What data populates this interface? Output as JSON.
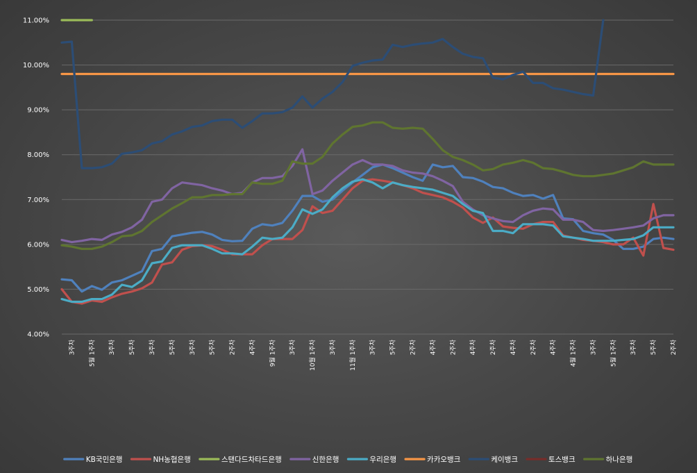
{
  "chart_data": {
    "type": "line",
    "title": "",
    "xlabel": "",
    "ylabel": "",
    "ylim": [
      4.0,
      11.0
    ],
    "yticks": [
      "4.00%",
      "5.00%",
      "6.00%",
      "7.00%",
      "8.00%",
      "9.00%",
      "10.00%",
      "11.00%"
    ],
    "grid": true,
    "legend_position": "bottom",
    "x_tick_labels": [
      "3주차",
      "5월 1주차",
      "3주차",
      "5주차",
      "3주차",
      "5주차",
      "3주차",
      "5주차",
      "2주차",
      "4주차",
      "9월 1주차",
      "3주차",
      "10월 1주차",
      "3주차",
      "11월 1주차",
      "3주차",
      "5주차",
      "2주차",
      "4주차",
      "2주차",
      "4주차",
      "2주차",
      "4주차",
      "2주차",
      "4주차",
      "4월 1주차",
      "3주차",
      "5월 1주차",
      "3주차",
      "5주차",
      "2주차"
    ],
    "n_points": 62,
    "series": [
      {
        "name": "KB국민은행",
        "color": "#4f81bd",
        "values": [
          5.22,
          5.2,
          4.95,
          5.07,
          4.99,
          5.15,
          5.2,
          5.3,
          5.4,
          5.85,
          5.9,
          6.18,
          6.22,
          6.26,
          6.28,
          6.22,
          6.1,
          6.07,
          6.08,
          6.35,
          6.45,
          6.42,
          6.48,
          6.75,
          7.08,
          7.08,
          6.95,
          7.0,
          7.2,
          7.38,
          7.55,
          7.72,
          7.78,
          7.7,
          7.6,
          7.5,
          7.42,
          7.78,
          7.72,
          7.75,
          7.5,
          7.48,
          7.4,
          7.28,
          7.25,
          7.15,
          7.08,
          7.1,
          7.02,
          7.1,
          6.58,
          6.56,
          6.3,
          6.25,
          6.22,
          6.1,
          5.9,
          5.9,
          5.95,
          6.12,
          6.15,
          6.12
        ]
      },
      {
        "name": "NH농협은행",
        "color": "#c0504d",
        "values": [
          5.0,
          4.72,
          4.68,
          4.75,
          4.72,
          4.82,
          4.9,
          4.95,
          5.02,
          5.15,
          5.55,
          5.6,
          5.88,
          5.96,
          5.98,
          5.96,
          5.88,
          5.78,
          5.78,
          5.78,
          5.98,
          6.12,
          6.12,
          6.12,
          6.32,
          6.85,
          6.7,
          6.75,
          7.0,
          7.25,
          7.42,
          7.45,
          7.42,
          7.38,
          7.32,
          7.25,
          7.15,
          7.1,
          7.05,
          6.95,
          6.82,
          6.6,
          6.48,
          6.6,
          6.4,
          6.37,
          6.35,
          6.45,
          6.5,
          6.5,
          6.2,
          6.15,
          6.1,
          6.08,
          6.05,
          6.0,
          6.0,
          6.15,
          5.75,
          6.9,
          5.92,
          5.88
        ]
      },
      {
        "name": "스탠다드차타드은행",
        "color": "#9bbb59",
        "values": [
          11.0,
          11.0,
          11.0,
          11.0,
          null,
          null,
          null,
          null,
          null,
          null,
          null,
          null,
          null,
          null,
          null,
          null,
          null,
          null,
          null,
          null,
          null,
          null,
          null,
          null,
          null,
          null,
          null,
          null,
          null,
          null,
          null,
          null,
          null,
          null,
          null,
          null,
          null,
          null,
          null,
          null,
          null,
          null,
          null,
          null,
          null,
          null,
          null,
          null,
          null,
          null,
          null,
          null,
          null,
          null,
          null,
          null,
          null,
          null,
          null,
          null,
          null,
          null
        ]
      },
      {
        "name": "신한은행",
        "color": "#8064a2",
        "values": [
          6.1,
          6.05,
          6.08,
          6.12,
          6.1,
          6.22,
          6.28,
          6.38,
          6.55,
          6.95,
          7.0,
          7.25,
          7.38,
          7.35,
          7.32,
          7.25,
          7.2,
          7.12,
          7.15,
          7.38,
          7.48,
          7.48,
          7.52,
          7.75,
          8.12,
          7.12,
          7.2,
          7.42,
          7.6,
          7.78,
          7.88,
          7.78,
          7.78,
          7.75,
          7.65,
          7.6,
          7.58,
          7.52,
          7.42,
          7.3,
          6.95,
          6.78,
          6.65,
          6.58,
          6.52,
          6.5,
          6.65,
          6.75,
          6.8,
          6.78,
          6.55,
          6.55,
          6.5,
          6.32,
          6.3,
          6.32,
          6.35,
          6.38,
          6.42,
          6.58,
          6.65,
          6.65
        ]
      },
      {
        "name": "우리은행",
        "color": "#4bacc6",
        "values": [
          4.78,
          4.72,
          4.72,
          4.78,
          4.78,
          4.88,
          5.1,
          5.05,
          5.2,
          5.58,
          5.62,
          5.92,
          5.98,
          5.98,
          5.98,
          5.9,
          5.8,
          5.8,
          5.78,
          5.95,
          6.15,
          6.12,
          6.15,
          6.38,
          6.78,
          6.68,
          6.78,
          7.05,
          7.25,
          7.4,
          7.45,
          7.38,
          7.25,
          7.38,
          7.32,
          7.28,
          7.25,
          7.22,
          7.15,
          7.08,
          6.9,
          6.75,
          6.7,
          6.3,
          6.3,
          6.25,
          6.45,
          6.45,
          6.45,
          6.42,
          6.18,
          6.15,
          6.12,
          6.08,
          6.08,
          6.08,
          6.1,
          6.12,
          6.2,
          6.38,
          6.38,
          6.38
        ]
      },
      {
        "name": "카카오뱅크",
        "color": "#f79646",
        "values": [
          9.8,
          9.8,
          9.8,
          9.8,
          9.8,
          9.8,
          9.8,
          9.8,
          9.8,
          9.8,
          9.8,
          9.8,
          9.8,
          9.8,
          9.8,
          9.8,
          9.8,
          9.8,
          9.8,
          9.8,
          9.8,
          9.8,
          9.8,
          9.8,
          9.8,
          9.8,
          9.8,
          9.8,
          9.8,
          9.8,
          9.8,
          9.8,
          9.8,
          9.8,
          9.8,
          9.8,
          9.8,
          9.8,
          9.8,
          9.8,
          9.8,
          9.8,
          9.8,
          9.8,
          9.8,
          9.8,
          9.8,
          9.8,
          9.8,
          9.8,
          9.8,
          9.8,
          9.8,
          9.8,
          9.8,
          9.8,
          9.8,
          9.8,
          9.8,
          9.8,
          9.8,
          9.8
        ]
      },
      {
        "name": "케이뱅크",
        "color": "#2c4d75",
        "values": [
          10.5,
          10.52,
          7.7,
          7.7,
          7.72,
          7.8,
          8.02,
          8.05,
          8.1,
          8.25,
          8.3,
          8.45,
          8.52,
          8.62,
          8.65,
          8.75,
          8.78,
          8.78,
          8.6,
          8.75,
          8.92,
          8.92,
          8.95,
          9.05,
          9.3,
          9.05,
          9.25,
          9.4,
          9.62,
          9.98,
          10.05,
          10.1,
          10.12,
          10.45,
          10.4,
          10.45,
          10.48,
          10.5,
          10.58,
          10.4,
          10.25,
          10.18,
          10.15,
          9.72,
          9.68,
          9.78,
          9.85,
          9.6,
          9.6,
          9.48,
          9.45,
          9.4,
          9.35,
          9.32,
          11.0,
          null,
          null,
          null,
          null,
          null,
          null,
          null
        ]
      },
      {
        "name": "토스뱅크",
        "color": "#772c2a",
        "values": [
          null,
          null,
          null,
          null,
          null,
          null,
          null,
          null,
          null,
          null,
          null,
          null,
          null,
          null,
          null,
          null,
          null,
          null,
          null,
          null,
          null,
          null,
          null,
          null,
          null,
          null,
          null,
          null,
          null,
          null,
          null,
          null,
          null,
          null,
          null,
          null,
          null,
          null,
          null,
          null,
          null,
          null,
          null,
          null,
          null,
          null,
          null,
          null,
          null,
          null,
          null,
          null,
          null,
          null,
          null,
          null,
          null,
          null,
          null,
          null,
          null,
          null
        ]
      },
      {
        "name": "하나은행",
        "color": "#5f7530",
        "values": [
          5.98,
          5.95,
          5.9,
          5.9,
          5.95,
          6.05,
          6.18,
          6.2,
          6.3,
          6.5,
          6.65,
          6.8,
          6.92,
          7.05,
          7.05,
          7.1,
          7.1,
          7.12,
          7.12,
          7.38,
          7.35,
          7.35,
          7.42,
          7.85,
          7.8,
          7.8,
          7.95,
          8.25,
          8.45,
          8.62,
          8.65,
          8.72,
          8.72,
          8.6,
          8.58,
          8.6,
          8.58,
          8.35,
          8.1,
          7.95,
          7.88,
          7.78,
          7.65,
          7.68,
          7.78,
          7.82,
          7.88,
          7.82,
          7.7,
          7.68,
          7.62,
          7.55,
          7.52,
          7.52,
          7.55,
          7.58,
          7.65,
          7.72,
          7.85,
          7.78,
          7.78,
          7.78
        ]
      }
    ]
  }
}
